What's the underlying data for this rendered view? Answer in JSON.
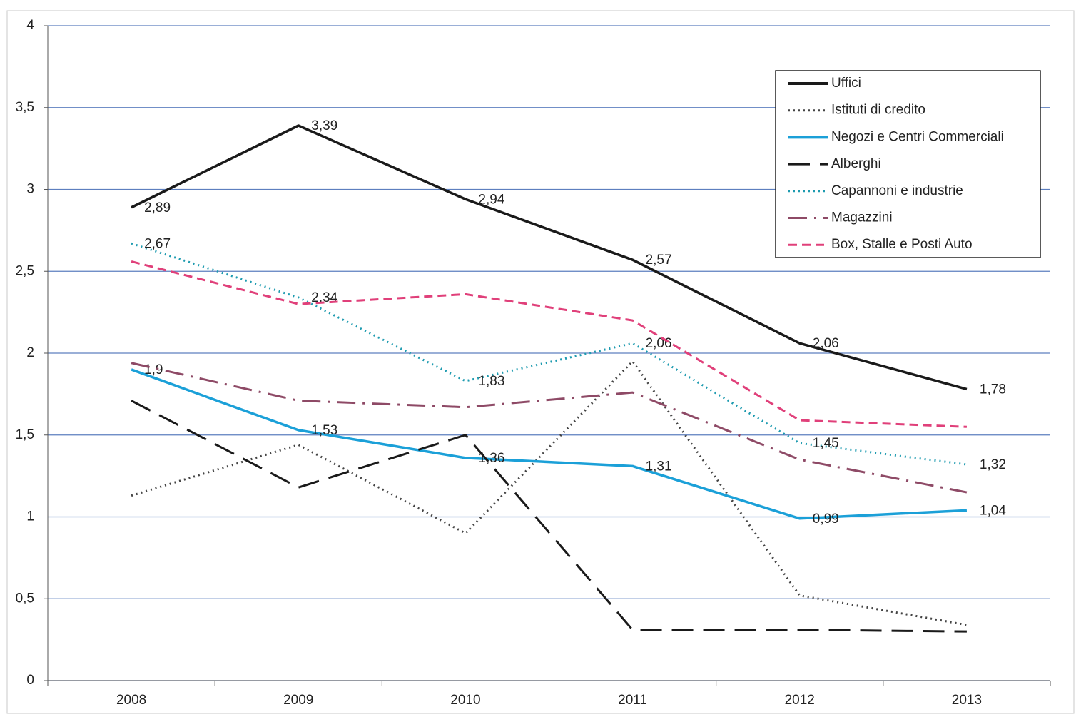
{
  "chart_data": {
    "type": "line",
    "categories": [
      "2008",
      "2009",
      "2010",
      "2011",
      "2012",
      "2013"
    ],
    "ylim": [
      0,
      4
    ],
    "yticks": [
      0,
      {
        "value": 0.5,
        "label": "0,5"
      },
      1,
      {
        "value": 1.5,
        "label": "1,5"
      },
      2,
      {
        "value": 2.5,
        "label": "2,5"
      },
      3,
      {
        "value": 3.5,
        "label": "3,5"
      },
      4
    ],
    "grid": true,
    "legend": "top-right",
    "series": [
      {
        "name": "Uffici",
        "color": "#1a1a1a",
        "dash": "solid",
        "values": [
          2.89,
          3.39,
          2.94,
          2.57,
          2.06,
          1.78
        ],
        "value_labels": [
          "2,89",
          "3,39",
          "2,94",
          "2,57",
          "2,06",
          "1,78"
        ]
      },
      {
        "name": "Istituti di credito",
        "color": "#444444",
        "dash": "dotted",
        "values": [
          1.13,
          1.44,
          0.9,
          1.95,
          0.52,
          0.34
        ]
      },
      {
        "name": "Negozi e Centri Commerciali",
        "color": "#1ba0d8",
        "dash": "solid",
        "values": [
          1.9,
          1.53,
          1.36,
          1.31,
          0.99,
          1.04
        ],
        "value_labels": [
          "1,9",
          "1,53",
          "1,36",
          "1,31",
          "0,99",
          "1,04"
        ]
      },
      {
        "name": "Alberghi",
        "color": "#1a1a1a",
        "dash": "long-dash",
        "values": [
          1.71,
          1.18,
          1.5,
          0.31,
          0.31,
          0.3
        ]
      },
      {
        "name": "Capannoni e industrie",
        "color": "#1e9bb0",
        "dash": "dotted",
        "values": [
          2.67,
          2.34,
          1.83,
          2.06,
          1.45,
          1.32
        ],
        "value_labels": [
          "2,67",
          "2,34",
          "1,83",
          "2,06",
          "1,45",
          "1,32"
        ]
      },
      {
        "name": "Magazzini",
        "color": "#8e4a66",
        "dash": "dash-dot",
        "values": [
          1.94,
          1.71,
          1.67,
          1.76,
          1.35,
          1.15
        ]
      },
      {
        "name": "Box, Stalle e Posti Auto",
        "color": "#e0407a",
        "dash": "dashed",
        "values": [
          2.56,
          2.3,
          2.36,
          2.2,
          1.59,
          1.55
        ]
      }
    ]
  }
}
